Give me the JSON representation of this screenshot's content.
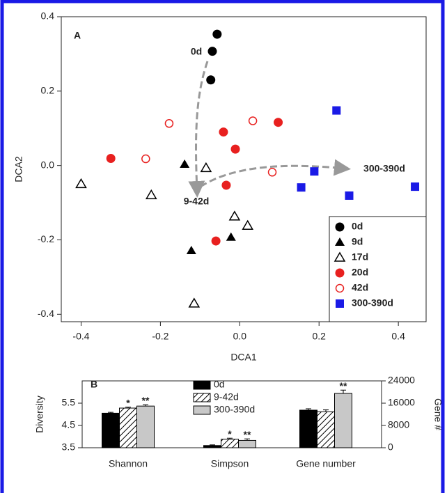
{
  "chart_data": [
    {
      "type": "scatter",
      "panel_label": "A",
      "xlabel": "DCA1",
      "ylabel": "DCA2",
      "xlim": [
        -0.45,
        0.47
      ],
      "ylim": [
        -0.42,
        0.4
      ],
      "xticks": [
        -0.4,
        -0.2,
        {
          "value": 0,
          "label": "0.0"
        },
        0.2,
        0.4
      ],
      "yticks": [
        -0.4,
        -0.2,
        {
          "value": 0,
          "label": "0.0"
        },
        0.2,
        0.4
      ],
      "legend": "lower right",
      "series": [
        {
          "name": "0d",
          "color": "#000000",
          "marker": "circle",
          "x": [
            -0.057,
            -0.069,
            -0.073
          ],
          "y": [
            0.353,
            0.307,
            0.23
          ]
        },
        {
          "name": "9d",
          "color": "#000000",
          "marker": "triangle",
          "x": [
            -0.139,
            -0.122,
            -0.022
          ],
          "y": [
            0.003,
            -0.229,
            -0.193
          ]
        },
        {
          "name": "17d",
          "color": "#000000",
          "marker": "triangle-open",
          "x": [
            -0.4,
            -0.223,
            -0.085,
            -0.013,
            0.02,
            -0.115
          ],
          "y": [
            -0.05,
            -0.08,
            -0.007,
            -0.137,
            -0.162,
            -0.371
          ]
        },
        {
          "name": "20d",
          "color": "#e8201f",
          "marker": "circle",
          "x": [
            -0.325,
            -0.041,
            -0.011,
            0.097,
            -0.034,
            -0.06
          ],
          "y": [
            0.019,
            0.09,
            0.044,
            0.116,
            -0.053,
            -0.203
          ]
        },
        {
          "name": "42d",
          "color": "#e8201f",
          "marker": "circle-open",
          "x": [
            -0.178,
            -0.237,
            0.033,
            0.082
          ],
          "y": [
            0.113,
            0.018,
            0.12,
            -0.018
          ]
        },
        {
          "name": "300-390d",
          "color": "#1a1ae6",
          "marker": "square",
          "x": [
            0.244,
            0.188,
            0.155,
            0.276,
            0.442
          ],
          "y": [
            0.148,
            -0.016,
            -0.059,
            -0.081,
            -0.057
          ]
        }
      ],
      "annotations": [
        {
          "text": "0d",
          "color": "#000000"
        },
        {
          "text": "9-42d",
          "color": "#e8201f"
        },
        {
          "text": "300-390d",
          "color": "#1a1ae6"
        }
      ]
    },
    {
      "type": "bar",
      "panel_label": "B",
      "ylabel": "Diversity",
      "y2label": "Gene #",
      "categories": [
        "Shannon",
        "Simpson",
        "Gene number"
      ],
      "category_axes": [
        "y",
        "y",
        "y2"
      ],
      "ylim": [
        3.5,
        6.5
      ],
      "yticks": [
        3.5,
        4.5,
        5.5
      ],
      "y2lim": [
        0,
        24000
      ],
      "y2ticks": [
        0,
        8000,
        16000,
        24000
      ],
      "legend": "upper center",
      "series": [
        {
          "name": "0d",
          "color": "#000000",
          "pattern": "solid",
          "values": [
            5.05,
            3.6,
            13500
          ],
          "errors": [
            0.04,
            0.03,
            500
          ]
        },
        {
          "name": "9-42d",
          "color": "#000000",
          "pattern": "hatch",
          "values": [
            5.28,
            3.88,
            12900
          ],
          "errors": [
            0.04,
            0.05,
            700
          ],
          "significance": [
            "*",
            "*",
            null
          ]
        },
        {
          "name": "300-390d",
          "color": "#c8c8c8",
          "pattern": "solid",
          "values": [
            5.37,
            3.83,
            19500
          ],
          "errors": [
            0.06,
            0.07,
            1200
          ],
          "significance": [
            "**",
            "**",
            "**"
          ]
        }
      ]
    }
  ]
}
